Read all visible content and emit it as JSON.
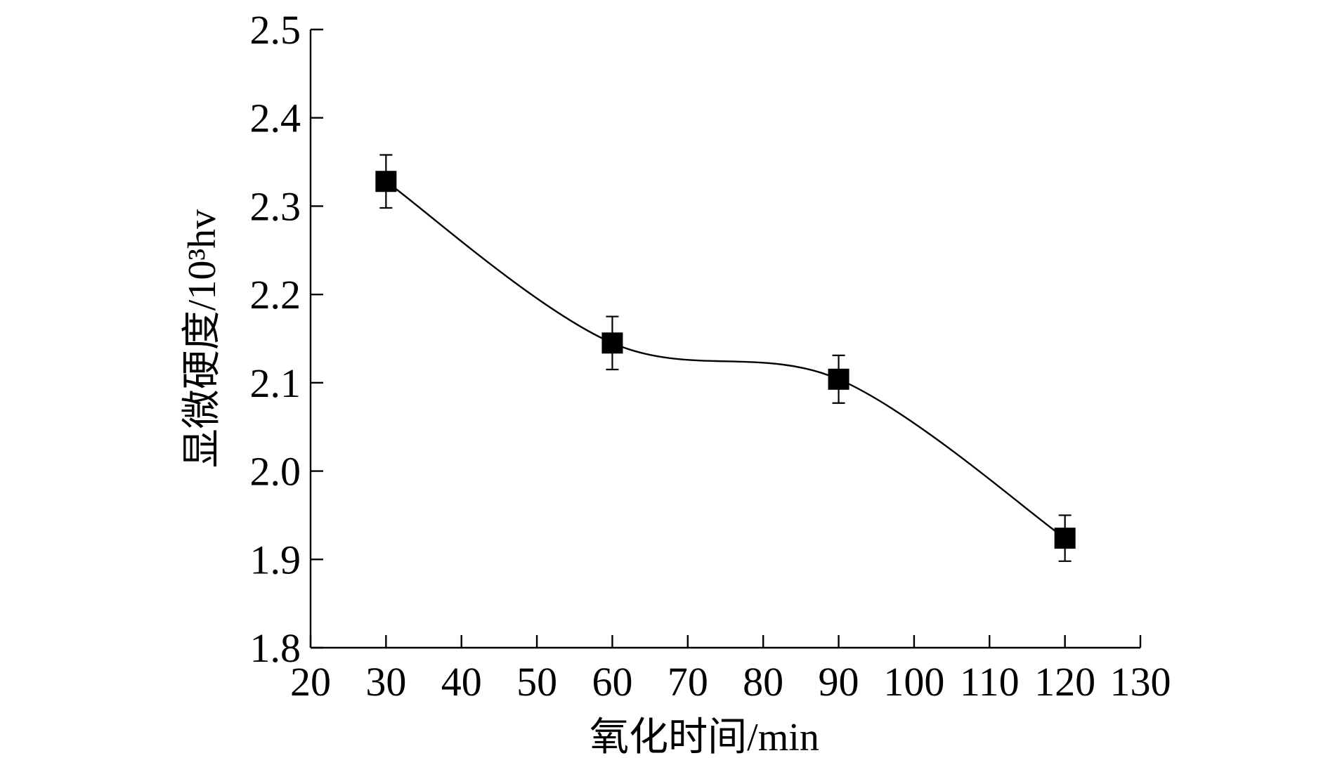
{
  "chart_data": {
    "type": "scatter",
    "title": "",
    "xlabel": "氧化时间/min",
    "ylabel": "显微硬度/10³hv",
    "xlim": [
      20,
      130
    ],
    "ylim": [
      1.8,
      2.5
    ],
    "x_ticks": [
      "20",
      "30",
      "40",
      "50",
      "60",
      "70",
      "80",
      "90",
      "100",
      "110",
      "120",
      "130"
    ],
    "y_ticks": [
      "1.8",
      "1.9",
      "2.0",
      "2.1",
      "2.2",
      "2.3",
      "2.4",
      "2.5"
    ],
    "grid": false,
    "legend": "none",
    "series": [
      {
        "marker": "filled-square",
        "color": "#000000",
        "x": [
          30,
          60,
          90,
          120
        ],
        "y": [
          2.328,
          2.145,
          2.104,
          1.924
        ],
        "error": [
          0.03,
          0.03,
          0.027,
          0.026
        ],
        "fit": "smooth-curve"
      }
    ]
  }
}
